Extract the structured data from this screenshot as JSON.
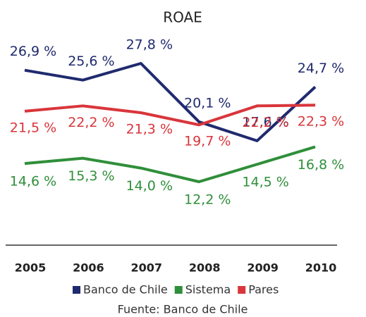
{
  "chart_data": {
    "type": "line",
    "title": "ROAE",
    "categories": [
      "2005",
      "2006",
      "2007",
      "2008",
      "2009",
      "2010"
    ],
    "series": [
      {
        "name": "Banco de Chile",
        "color": "#1f2a6e",
        "values": [
          26.9,
          25.6,
          27.8,
          20.1,
          17.6,
          24.7
        ],
        "value_labels": [
          "26,9 %",
          "25,6 %",
          "27,8 %",
          "20,1 %",
          "17,6 %",
          "24,7 %"
        ]
      },
      {
        "name": "Sistema",
        "color": "#2f8f3a",
        "values": [
          14.6,
          15.3,
          14.0,
          12.2,
          14.5,
          16.8
        ],
        "value_labels": [
          "14,6 %",
          "15,3 %",
          "14,0 %",
          "12,2 %",
          "14,5 %",
          "16,8 %"
        ]
      },
      {
        "name": "Pares",
        "color": "#d9353b",
        "values": [
          21.5,
          22.2,
          21.3,
          19.7,
          22.2,
          22.3
        ],
        "value_labels": [
          "21,5 %",
          "22,2 %",
          "21,3 %",
          "19,7 %",
          "22,2 %",
          "22,3 %"
        ]
      }
    ],
    "source": "Fuente: Banco de Chile"
  }
}
